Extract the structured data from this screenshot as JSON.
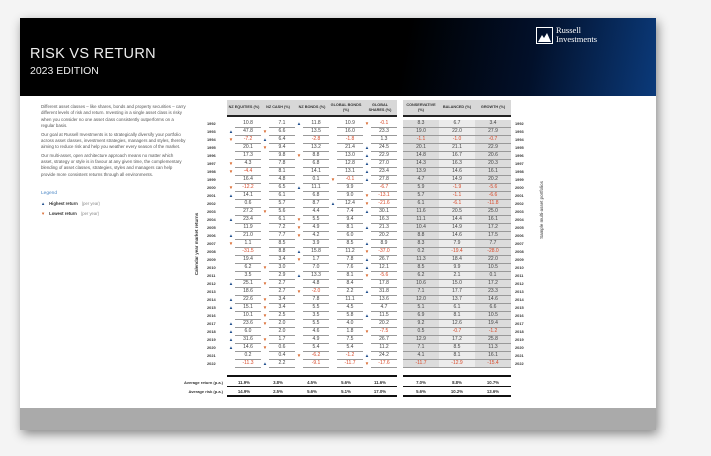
{
  "header": {
    "title": "RISK VS RETURN",
    "subtitle": "2023 EDITION",
    "logo_line1": "Russell",
    "logo_line2": "Investments"
  },
  "intro": [
    "Different asset classes – like shares, bonds and property securities – carry different levels of risk and return. Investing in a single asset class is risky when you consider no one asset class consistently outperforms on a regular basis.",
    "Our goal at Russell Investments is to strategically diversify your portfolio across asset classes, investment strategies, managers and styles, thereby aiming to reduce risk and help you weather every season of the market.",
    "Our multi-asset, open architecture approach means no matter which asset, strategy or style is in favour at any given time, the complementary blending of asset classes, strategies, styles and managers can help provide more consistent returns through all environments."
  ],
  "legend": {
    "title": "Legend",
    "high_label": "Highest return",
    "high_note": "(per year)",
    "low_label": "Lowest return",
    "low_note": "(per year)"
  },
  "colors": {
    "highest": "#1e4d8c",
    "lowest": "#d8652a",
    "negative": "#d84a2a"
  },
  "side_labels": {
    "left": "Calendar year market returns",
    "right": "Sample multi-asset portfolios"
  },
  "market_headers": [
    "NZ EQUITIES (%)",
    "NZ CASH (%)",
    "NZ BONDS (%)",
    "GLOBAL BONDS (%)",
    "GLOBAL SHARES (%)"
  ],
  "portfolio_headers": [
    "CONSERVATIVE (%)",
    "BALANCED (%)",
    "GROWTH (%)"
  ],
  "rows": [
    {
      "year": "1992",
      "v": [
        "10.8",
        "7.1",
        "11.8",
        "10.9",
        "-0.1"
      ],
      "m": [
        "",
        "",
        "up",
        "",
        "down"
      ],
      "p": [
        "8.3",
        "6.7",
        "3.4"
      ]
    },
    {
      "year": "1993",
      "v": [
        "47.8",
        "6.6",
        "13.5",
        "16.0",
        "23.3"
      ],
      "m": [
        "up",
        "down",
        "",
        "",
        ""
      ],
      "p": [
        "19.0",
        "22.0",
        "27.9"
      ]
    },
    {
      "year": "1994",
      "v": [
        "-7.2",
        "6.4",
        "-2.8",
        "-1.8",
        "1.3"
      ],
      "m": [
        "down",
        "up",
        "",
        "",
        ""
      ],
      "p": [
        "-1.1",
        "-1.0",
        "-0.7"
      ]
    },
    {
      "year": "1995",
      "v": [
        "20.1",
        "9.4",
        "13.2",
        "21.4",
        "24.5"
      ],
      "m": [
        "",
        "down",
        "",
        "",
        "up"
      ],
      "p": [
        "20.1",
        "21.1",
        "22.9"
      ]
    },
    {
      "year": "1996",
      "v": [
        "17.3",
        "9.8",
        "8.8",
        "13.0",
        "22.9"
      ],
      "m": [
        "",
        "",
        "down",
        "",
        "up"
      ],
      "p": [
        "14.8",
        "16.7",
        "20.6"
      ]
    },
    {
      "year": "1997",
      "v": [
        "4.3",
        "7.8",
        "6.8",
        "12.8",
        "27.0"
      ],
      "m": [
        "down",
        "",
        "",
        "",
        "up"
      ],
      "p": [
        "14.3",
        "16.3",
        "20.3"
      ]
    },
    {
      "year": "1998",
      "v": [
        "-4.4",
        "8.1",
        "14.1",
        "13.1",
        "23.4"
      ],
      "m": [
        "down",
        "",
        "",
        "",
        "up"
      ],
      "p": [
        "13.9",
        "14.6",
        "16.1"
      ]
    },
    {
      "year": "1999",
      "v": [
        "16.4",
        "4.8",
        "0.1",
        "-0.1",
        "27.8"
      ],
      "m": [
        "",
        "",
        "",
        "down",
        "up"
      ],
      "p": [
        "4.7",
        "14.9",
        "20.2"
      ]
    },
    {
      "year": "2000",
      "v": [
        "-12.2",
        "6.5",
        "11.1",
        "9.9",
        "-6.7"
      ],
      "m": [
        "down",
        "",
        "up",
        "",
        ""
      ],
      "p": [
        "5.9",
        "-1.9",
        "-5.6"
      ]
    },
    {
      "year": "2001",
      "v": [
        "14.1",
        "6.1",
        "6.8",
        "9.0",
        "-13.1"
      ],
      "m": [
        "up",
        "",
        "",
        "",
        "down"
      ],
      "p": [
        "5.7",
        "-1.1",
        "-6.6"
      ]
    },
    {
      "year": "2002",
      "v": [
        "0.6",
        "5.7",
        "8.7",
        "12.4",
        "-21.6"
      ],
      "m": [
        "",
        "",
        "",
        "up",
        "down"
      ],
      "p": [
        "6.1",
        "-6.1",
        "-11.8"
      ]
    },
    {
      "year": "2003",
      "v": [
        "27.2",
        "5.6",
        "4.4",
        "7.4",
        "30.1"
      ],
      "m": [
        "",
        "down",
        "",
        "",
        "up"
      ],
      "p": [
        "11.6",
        "20.5",
        "25.0"
      ]
    },
    {
      "year": "2004",
      "v": [
        "23.4",
        "6.1",
        "5.5",
        "9.4",
        "16.3"
      ],
      "m": [
        "up",
        "",
        "down",
        "",
        ""
      ],
      "p": [
        "11.1",
        "14.4",
        "16.1"
      ]
    },
    {
      "year": "2005",
      "v": [
        "11.9",
        "7.2",
        "4.9",
        "8.1",
        "21.3"
      ],
      "m": [
        "",
        "",
        "down",
        "",
        "up"
      ],
      "p": [
        "10.4",
        "14.9",
        "17.2"
      ]
    },
    {
      "year": "2006",
      "v": [
        "21.0",
        "7.7",
        "4.2",
        "6.0",
        "20.2"
      ],
      "m": [
        "up",
        "",
        "down",
        "",
        ""
      ],
      "p": [
        "8.8",
        "14.6",
        "17.5"
      ]
    },
    {
      "year": "2007",
      "v": [
        "1.1",
        "8.5",
        "3.9",
        "8.5",
        "8.9"
      ],
      "m": [
        "down",
        "",
        "",
        "",
        "up"
      ],
      "p": [
        "8.3",
        "7.9",
        "7.7"
      ]
    },
    {
      "year": "2008",
      "v": [
        "-31.5",
        "8.8",
        "15.8",
        "11.2",
        "-37.0"
      ],
      "m": [
        "",
        "",
        "up",
        "",
        "down"
      ],
      "p": [
        "0.2",
        "-19.4",
        "-28.0"
      ]
    },
    {
      "year": "2009",
      "v": [
        "19.4",
        "3.4",
        "1.7",
        "7.8",
        "26.7"
      ],
      "m": [
        "",
        "",
        "down",
        "",
        "up"
      ],
      "p": [
        "11.3",
        "18.4",
        "22.0"
      ]
    },
    {
      "year": "2010",
      "v": [
        "6.2",
        "3.0",
        "7.0",
        "7.6",
        "12.1"
      ],
      "m": [
        "",
        "down",
        "",
        "",
        "up"
      ],
      "p": [
        "8.5",
        "9.9",
        "10.5"
      ]
    },
    {
      "year": "2011",
      "v": [
        "3.5",
        "2.9",
        "13.3",
        "8.1",
        "-5.6"
      ],
      "m": [
        "",
        "",
        "up",
        "",
        "down"
      ],
      "p": [
        "6.2",
        "2.1",
        "0.1"
      ]
    },
    {
      "year": "2012",
      "v": [
        "25.1",
        "2.7",
        "4.8",
        "8.4",
        "17.8"
      ],
      "m": [
        "up",
        "down",
        "",
        "",
        ""
      ],
      "p": [
        "10.6",
        "15.0",
        "17.2"
      ]
    },
    {
      "year": "2013",
      "v": [
        "18.6",
        "2.7",
        "-2.0",
        "2.2",
        "31.8"
      ],
      "m": [
        "",
        "",
        "down",
        "",
        "up"
      ],
      "p": [
        "7.1",
        "17.7",
        "23.3"
      ]
    },
    {
      "year": "2014",
      "v": [
        "22.6",
        "3.4",
        "7.8",
        "11.1",
        "13.6"
      ],
      "m": [
        "up",
        "down",
        "",
        "",
        ""
      ],
      "p": [
        "12.0",
        "13.7",
        "14.6"
      ]
    },
    {
      "year": "2015",
      "v": [
        "15.1",
        "3.4",
        "5.5",
        "4.5",
        "4.7"
      ],
      "m": [
        "up",
        "down",
        "",
        "",
        ""
      ],
      "p": [
        "5.1",
        "6.1",
        "6.6"
      ]
    },
    {
      "year": "2016",
      "v": [
        "10.1",
        "2.5",
        "3.5",
        "5.8",
        "11.5"
      ],
      "m": [
        "",
        "down",
        "",
        "",
        "up"
      ],
      "p": [
        "6.9",
        "8.1",
        "10.5"
      ]
    },
    {
      "year": "2017",
      "v": [
        "23.6",
        "2.0",
        "5.5",
        "4.0",
        "20.2"
      ],
      "m": [
        "up",
        "down",
        "",
        "",
        ""
      ],
      "p": [
        "9.2",
        "12.6",
        "19.4"
      ]
    },
    {
      "year": "2018",
      "v": [
        "6.0",
        "2.0",
        "4.6",
        "1.8",
        "-7.5"
      ],
      "m": [
        "up",
        "",
        "",
        "",
        "down"
      ],
      "p": [
        "0.5",
        "-0.7",
        "-1.2"
      ]
    },
    {
      "year": "2019",
      "v": [
        "31.6",
        "1.7",
        "4.9",
        "7.5",
        "26.7"
      ],
      "m": [
        "up",
        "down",
        "",
        "",
        ""
      ],
      "p": [
        "12.9",
        "17.2",
        "25.8"
      ]
    },
    {
      "year": "2020",
      "v": [
        "14.6",
        "0.6",
        "5.4",
        "5.4",
        "11.2"
      ],
      "m": [
        "up",
        "down",
        "",
        "",
        ""
      ],
      "p": [
        "7.1",
        "8.5",
        "11.3"
      ]
    },
    {
      "year": "2021",
      "v": [
        "0.2",
        "0.4",
        "-6.2",
        "-1.2",
        "24.2"
      ],
      "m": [
        "",
        "",
        "down",
        "",
        "up"
      ],
      "p": [
        "4.1",
        "8.1",
        "16.1"
      ]
    },
    {
      "year": "2022",
      "v": [
        "-11.3",
        "2.2",
        "-9.1",
        "-11.7",
        "-17.6"
      ],
      "m": [
        "",
        "up",
        "",
        "",
        "down"
      ],
      "p": [
        "-11.7",
        "-12.9",
        "-15.4"
      ]
    }
  ],
  "averages": [
    {
      "label": "Average return (p.a.)",
      "v": [
        "11.9%",
        "3.8%",
        "4.5%",
        "5.6%",
        "11.6%"
      ],
      "p": [
        "7.0%",
        "8.8%",
        "10.7%"
      ]
    },
    {
      "label": "Average risk (p.a.)",
      "v": [
        "14.9%",
        "2.5%",
        "5.6%",
        "5.1%",
        "17.0%"
      ],
      "p": [
        "5.6%",
        "10.2%",
        "13.6%"
      ]
    }
  ]
}
